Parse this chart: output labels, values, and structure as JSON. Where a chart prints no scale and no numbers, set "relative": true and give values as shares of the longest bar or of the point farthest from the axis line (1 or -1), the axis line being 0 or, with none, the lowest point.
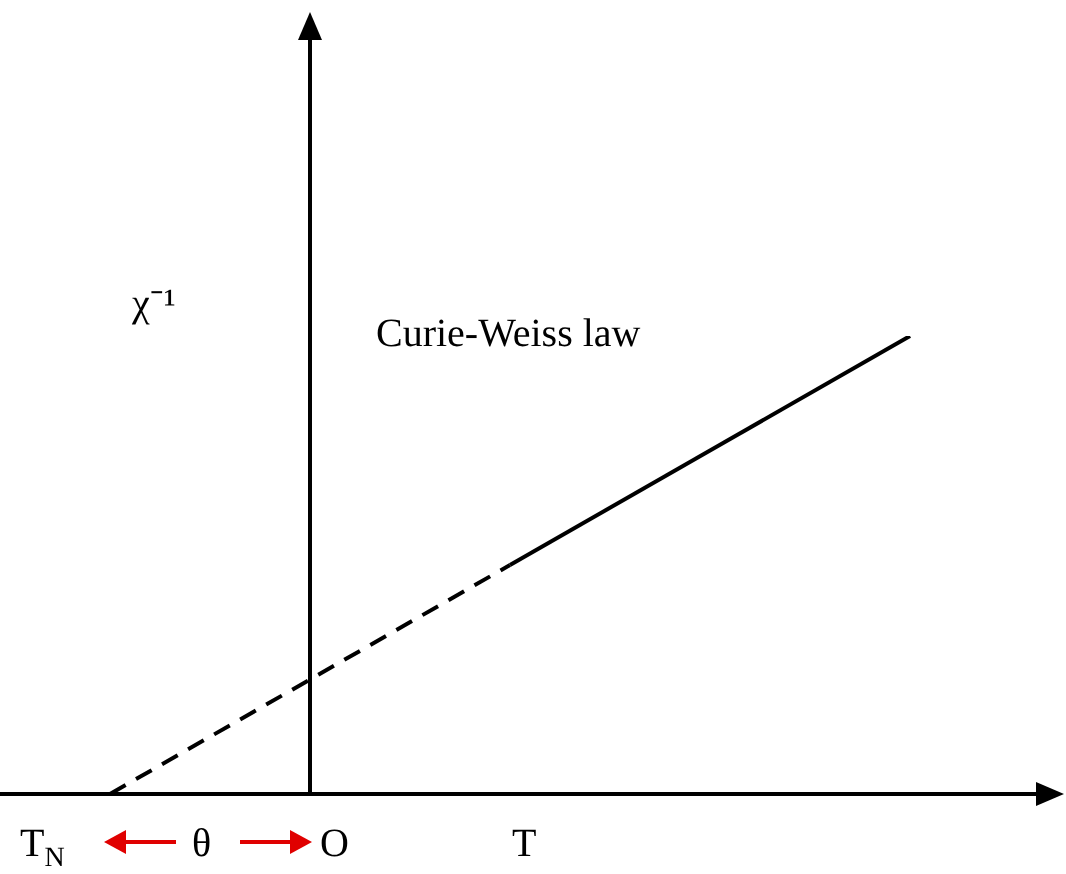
{
  "chart_data": {
    "type": "line",
    "relative": true,
    "xlabel": "T",
    "ylabel": "χ⁻¹",
    "categories": [
      null,
      null,
      null,
      null,
      null
    ],
    "series": [
      {
        "color": "#000000",
        "line_style": "dashed",
        "values": [
          0,
          0.25,
          0.5,
          null,
          null
        ]
      },
      {
        "color": "#000000",
        "line_style": "solid",
        "values": [
          null,
          null,
          0.5,
          0.75,
          1
        ]
      }
    ],
    "marker": "none",
    "legend": false,
    "annotations": [
      "Curie-Weiss law",
      "T$_{N}$",
      "θ",
      "O"
    ]
  }
}
